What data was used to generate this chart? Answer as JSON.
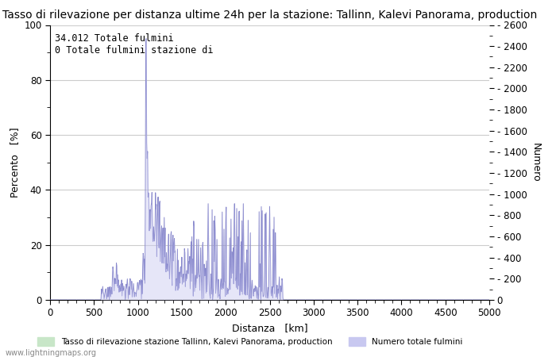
{
  "title": "Tasso di rilevazione per distanza ultime 24h per la stazione: Tallinn, Kalevi Panorama, production",
  "xlabel": "Distanza   [km]",
  "ylabel_left": "Percento   [%]",
  "ylabel_right": "Numero",
  "annotation_line1": "34.012 Totale fulmini",
  "annotation_line2": "0 Totale fulmini stazione di",
  "xlim": [
    0,
    5000
  ],
  "ylim_left": [
    0,
    100
  ],
  "ylim_right": [
    0,
    2600
  ],
  "right_major_ticks": [
    0,
    200,
    400,
    600,
    800,
    1000,
    1200,
    1400,
    1600,
    1800,
    2000,
    2200,
    2400,
    2600
  ],
  "left_major_ticks": [
    0,
    20,
    40,
    60,
    80,
    100
  ],
  "xticks": [
    0,
    500,
    1000,
    1500,
    2000,
    2500,
    3000,
    3500,
    4000,
    4500,
    5000
  ],
  "legend_detection_label": "Tasso di rilevazione stazione Tallinn, Kalevi Panorama, production",
  "legend_total_label": "Numero totale fulmini",
  "detection_color": "#c8e6c8",
  "total_color": "#c8c8f0",
  "line_color": "#8888cc",
  "watermark": "www.lightningmaps.org",
  "background_color": "#ffffff",
  "grid_color": "#cccccc",
  "title_fontsize": 10,
  "axis_fontsize": 9,
  "tick_fontsize": 8.5,
  "annotation_fontsize": 8.5
}
